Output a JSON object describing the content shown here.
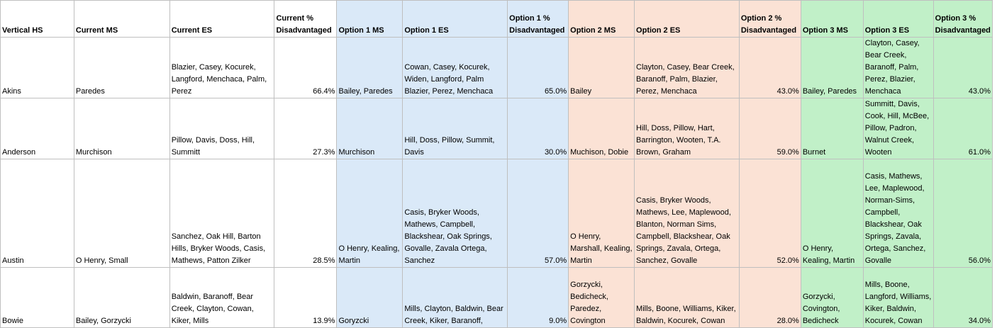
{
  "colors": {
    "option1_fill": "#dae9f8",
    "option2_fill": "#fbe2d5",
    "option3_fill": "#c1f0c8",
    "gridline": "#bfbfbf"
  },
  "headers": [
    "Vertical HS",
    "Current MS",
    "Current ES",
    "Current % Disadvantaged",
    "Option 1 MS",
    "Option 1 ES",
    "Option 1 % Disadvantaged",
    "Option 2 MS",
    "Option 2 ES",
    "Option 2 % Disadvantaged",
    "Option 3 MS",
    "Option 3 ES",
    "Option 3 % Disadvantaged"
  ],
  "rows": [
    [
      "Akins",
      "Paredes",
      "Blazier, Casey, Kocurek, Langford, Menchaca, Palm, Perez",
      "66.4%",
      "Bailey, Paredes",
      "Cowan, Casey, Kocurek, Widen, Langford, Palm Blazier, Perez, Menchaca",
      "65.0%",
      "Bailey",
      "Clayton, Casey, Bear Creek, Baranoff, Palm, Blazier, Perez, Menchaca",
      "43.0%",
      "Bailey, Paredes",
      "Clayton, Casey, Bear Creek, Baranoff, Palm, Perez, Blazier, Menchaca",
      "43.0%"
    ],
    [
      "Anderson",
      "Murchison",
      "Pillow, Davis, Doss, Hill, Summitt",
      "27.3%",
      "Murchison",
      "Hill, Doss, Pillow, Summit, Davis",
      "30.0%",
      "Muchison, Dobie",
      "Hill, Doss, Pillow, Hart, Barrington, Wooten, T.A. Brown, Graham",
      "59.0%",
      "Burnet",
      "Summitt, Davis, Cook, Hill, McBee, Pillow, Padron, Walnut Creek, Wooten",
      "61.0%"
    ],
    [
      "Austin",
      "O Henry, Small",
      "Sanchez, Oak Hill, Barton Hills, Bryker Woods, Casis, Mathews, Patton Zilker",
      "28.5%",
      "O Henry, Kealing, Martin",
      "Casis, Bryker Woods, Mathews, Campbell, Blackshear, Oak Springs, Govalle, Zavala Ortega, Sanchez",
      "57.0%",
      "O Henry, Marshall, Kealing, Martin",
      "Casis, Bryker Woods, Mathews, Lee, Maplewood, Blanton, Norman Sims, Campbell, Blackshear, Oak Springs, Zavala, Ortega, Sanchez, Govalle",
      "52.0%",
      "O Henry, Kealing, Martin",
      "Casis, Mathews, Lee, Maplewood, Norman-Sims, Campbell, Blackshear, Oak Springs, Zavala, Ortega, Sanchez, Govalle",
      "56.0%"
    ],
    [
      "Bowie",
      "Bailey, Gorzycki",
      "Baldwin, Baranoff, Bear Creek, Clayton, Cowan, Kiker, Mills",
      "13.9%",
      "Goryzcki",
      "Mills, Clayton, Baldwin, Bear Creek, Kiker, Baranoff,",
      "9.0%",
      "Gorzycki, Bedicheck, Paredez, Covington",
      "Mills, Boone, Williams, Kiker, Baldwin, Kocurek, Cowan",
      "28.0%",
      "Gorzycki, Covington, Bedicheck",
      "Mills, Boone, Langford, Williams, Kiker, Baldwin, Kocurek, Cowan",
      "34.0%"
    ]
  ]
}
